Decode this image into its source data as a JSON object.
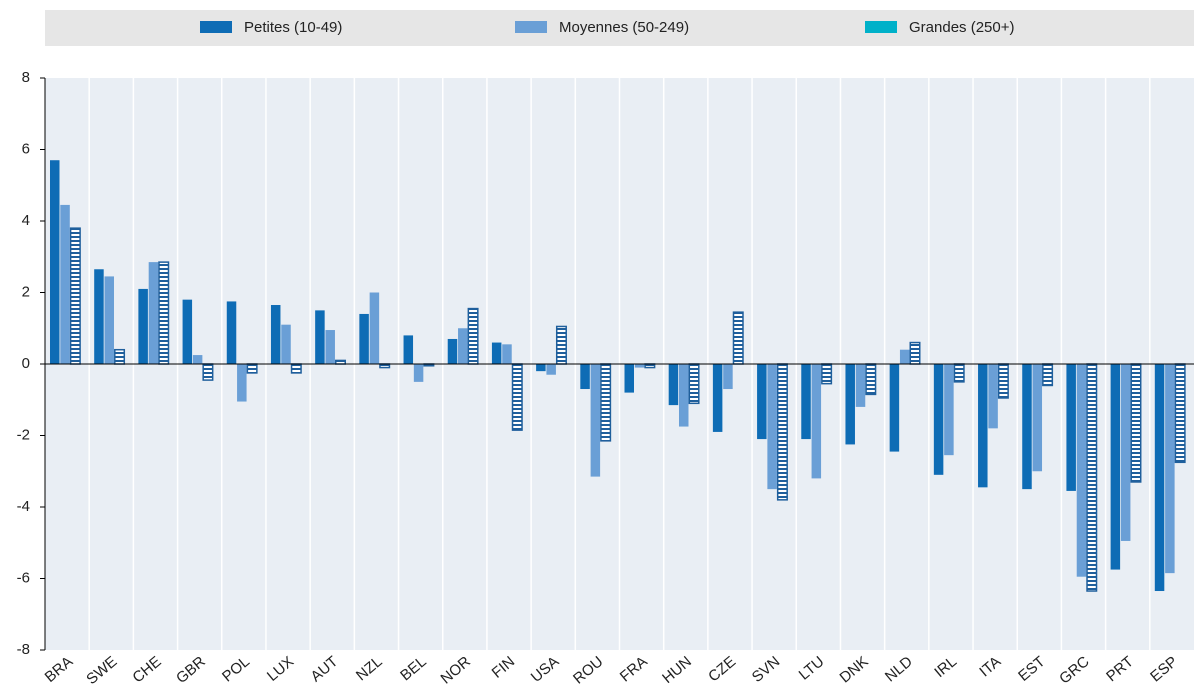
{
  "chart_data": {
    "type": "bar",
    "categories": [
      "BRA",
      "SWE",
      "CHE",
      "GBR",
      "POL",
      "LUX",
      "AUT",
      "NZL",
      "BEL",
      "NOR",
      "FIN",
      "USA",
      "ROU",
      "FRA",
      "HUN",
      "CZE",
      "SVN",
      "LTU",
      "DNK",
      "NLD",
      "IRL",
      "ITA",
      "EST",
      "GRC",
      "PRT",
      "ESP"
    ],
    "series": [
      {
        "name": "Petites (10-49)",
        "color": "#0e6cb5",
        "values": [
          5.7,
          2.65,
          2.1,
          1.8,
          1.75,
          1.65,
          1.5,
          1.4,
          0.8,
          0.7,
          0.6,
          -0.2,
          -0.7,
          -0.8,
          -1.15,
          -1.9,
          -2.1,
          -2.1,
          -2.25,
          -2.45,
          -3.1,
          -3.45,
          -3.5,
          -3.55,
          -5.75,
          -6.35
        ]
      },
      {
        "name": "Moyennes (50-249)",
        "color": "#6a9fd6",
        "values": [
          4.45,
          2.45,
          2.85,
          0.25,
          -1.05,
          1.1,
          0.95,
          2.0,
          -0.5,
          1.0,
          0.55,
          -0.3,
          -3.15,
          -0.1,
          -1.75,
          -0.7,
          -3.5,
          -3.2,
          -1.2,
          0.4,
          -2.55,
          -1.8,
          -3.0,
          -5.95,
          -4.95,
          -5.85
        ]
      },
      {
        "name": "Grandes (250+)",
        "color": "#00b1c9",
        "values": [
          3.8,
          0.4,
          2.85,
          -0.45,
          -0.25,
          -0.25,
          0.1,
          -0.1,
          -0.05,
          1.55,
          -1.85,
          1.05,
          -2.15,
          -0.1,
          -1.1,
          1.45,
          -3.8,
          -0.55,
          -0.85,
          0.6,
          -0.5,
          -0.95,
          -0.6,
          -6.35,
          -3.3,
          -2.75
        ]
      }
    ],
    "ylim": [
      -8,
      8
    ],
    "yticks": [
      -8,
      -6,
      -4,
      -2,
      0,
      2,
      4,
      6,
      8
    ],
    "grid": true
  }
}
